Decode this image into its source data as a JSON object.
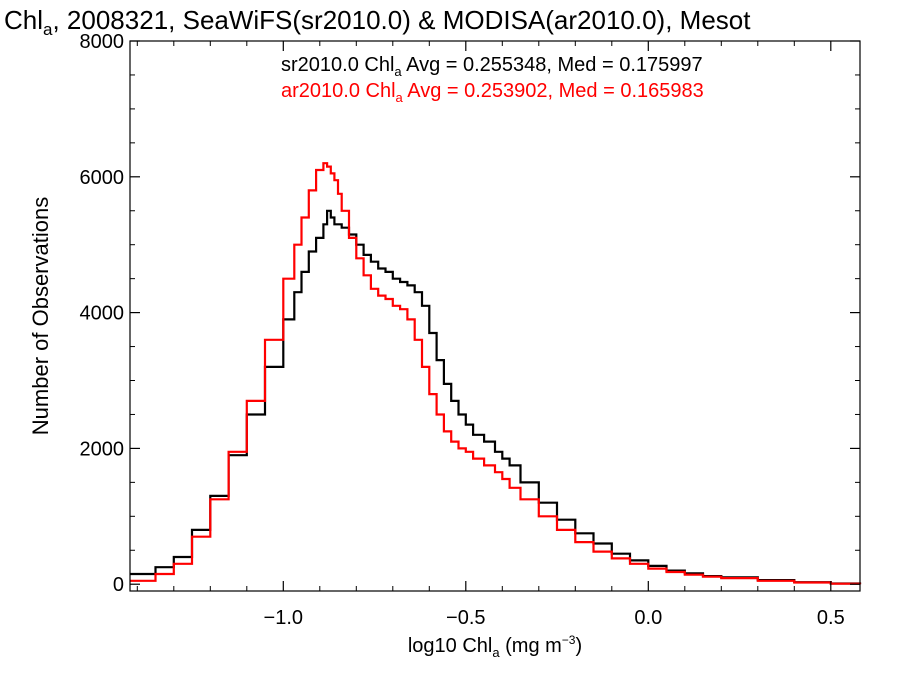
{
  "chart_data": {
    "type": "line",
    "title": {
      "pre": "Chl",
      "sub": "a",
      "post": ", 2008321, SeaWiFS(sr2010.0) & MODISA(ar2010.0), Mesot"
    },
    "xlabel": {
      "pre": "log10 Chl",
      "sub": "a",
      "mid": " (mg m",
      "sup": "−3",
      "post": ")"
    },
    "ylabel": "Number of Observations",
    "xlim": [
      -1.42,
      0.58
    ],
    "ylim": [
      -100,
      8000
    ],
    "xticks": [
      {
        "value": -1.0,
        "label": "−1.0"
      },
      {
        "value": -0.5,
        "label": "−0.5"
      },
      {
        "value": 0.0,
        "label": "0.0"
      },
      {
        "value": 0.5,
        "label": "0.5"
      }
    ],
    "yticks": [
      {
        "value": 0,
        "label": "0"
      },
      {
        "value": 2000,
        "label": "2000"
      },
      {
        "value": 4000,
        "label": "4000"
      },
      {
        "value": 6000,
        "label": "6000"
      },
      {
        "value": 8000,
        "label": "8000"
      }
    ],
    "legend": {
      "placement": "top-right",
      "entries": [
        {
          "pre": "sr2010.0 Chl",
          "sub": "a",
          "post": " Avg = 0.255348, Med = 0.175997",
          "color": "#000000"
        },
        {
          "pre": "ar2010.0 Chl",
          "sub": "a",
          "post": " Avg = 0.253902, Med = 0.165983",
          "color": "#ff0000"
        }
      ]
    },
    "series": [
      {
        "color": "#000000",
        "x": [
          -1.42,
          -1.35,
          -1.3,
          -1.25,
          -1.2,
          -1.15,
          -1.1,
          -1.05,
          -1.0,
          -0.97,
          -0.95,
          -0.93,
          -0.91,
          -0.89,
          -0.88,
          -0.87,
          -0.86,
          -0.84,
          -0.82,
          -0.8,
          -0.78,
          -0.76,
          -0.74,
          -0.72,
          -0.7,
          -0.68,
          -0.66,
          -0.64,
          -0.62,
          -0.6,
          -0.58,
          -0.56,
          -0.54,
          -0.52,
          -0.5,
          -0.48,
          -0.45,
          -0.42,
          -0.4,
          -0.38,
          -0.35,
          -0.3,
          -0.25,
          -0.2,
          -0.15,
          -0.1,
          -0.05,
          0.0,
          0.05,
          0.1,
          0.15,
          0.2,
          0.3,
          0.4,
          0.5,
          0.58
        ],
        "y": [
          150,
          250,
          400,
          800,
          1300,
          1900,
          2500,
          3200,
          3900,
          4300,
          4600,
          4900,
          5100,
          5300,
          5500,
          5400,
          5300,
          5250,
          5150,
          5000,
          4850,
          4750,
          4650,
          4600,
          4500,
          4450,
          4400,
          4300,
          4100,
          3700,
          3300,
          2950,
          2700,
          2500,
          2350,
          2200,
          2100,
          1950,
          1850,
          1750,
          1500,
          1200,
          950,
          750,
          600,
          450,
          350,
          270,
          200,
          160,
          120,
          100,
          60,
          30,
          10,
          0
        ]
      },
      {
        "color": "#ff0000",
        "x": [
          -1.42,
          -1.35,
          -1.3,
          -1.25,
          -1.2,
          -1.15,
          -1.1,
          -1.05,
          -1.0,
          -0.97,
          -0.95,
          -0.93,
          -0.91,
          -0.89,
          -0.88,
          -0.87,
          -0.86,
          -0.85,
          -0.84,
          -0.82,
          -0.8,
          -0.78,
          -0.76,
          -0.74,
          -0.72,
          -0.7,
          -0.68,
          -0.66,
          -0.64,
          -0.62,
          -0.6,
          -0.58,
          -0.56,
          -0.54,
          -0.52,
          -0.5,
          -0.48,
          -0.45,
          -0.42,
          -0.4,
          -0.38,
          -0.35,
          -0.3,
          -0.25,
          -0.2,
          -0.15,
          -0.1,
          -0.05,
          0.0,
          0.05,
          0.1,
          0.15,
          0.2,
          0.3,
          0.4,
          0.5,
          0.58
        ],
        "y": [
          50,
          150,
          300,
          700,
          1250,
          1950,
          2700,
          3600,
          4500,
          5000,
          5400,
          5800,
          6100,
          6200,
          6150,
          6050,
          5950,
          5750,
          5500,
          5100,
          4800,
          4550,
          4350,
          4250,
          4200,
          4100,
          4050,
          3900,
          3600,
          3200,
          2800,
          2500,
          2250,
          2100,
          2000,
          1950,
          1850,
          1750,
          1650,
          1550,
          1420,
          1250,
          1000,
          800,
          620,
          480,
          380,
          300,
          230,
          180,
          140,
          110,
          90,
          50,
          25,
          8,
          0
        ]
      }
    ]
  }
}
